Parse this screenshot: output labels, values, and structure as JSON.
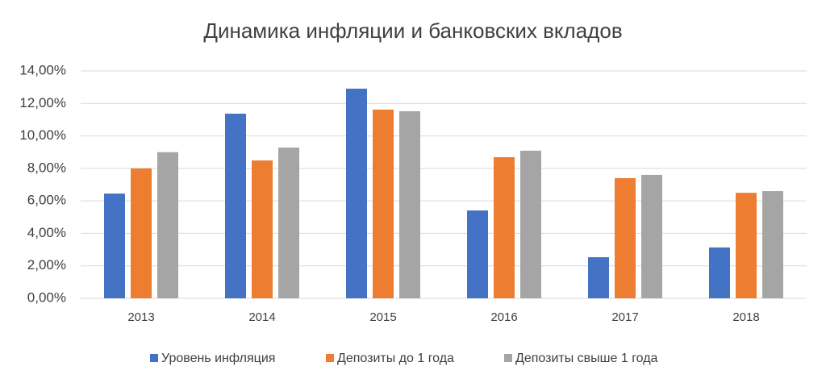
{
  "chart_data": {
    "type": "bar",
    "title": "Динамика инфляции и банковских вкладов",
    "categories": [
      "2013",
      "2014",
      "2015",
      "2016",
      "2017",
      "2018"
    ],
    "series": [
      {
        "name": "Уровень инфляция",
        "color": "#4472c4",
        "values": [
          6.45,
          11.37,
          12.91,
          5.41,
          2.53,
          3.13
        ]
      },
      {
        "name": "Депозиты до 1 года",
        "color": "#ed7d31",
        "values": [
          8.0,
          8.49,
          11.62,
          8.69,
          7.4,
          6.5
        ]
      },
      {
        "name": "Депозиты свыше 1 года",
        "color": "#a5a5a5",
        "values": [
          9.0,
          9.28,
          11.52,
          9.09,
          7.6,
          6.6
        ]
      }
    ],
    "ylim": [
      0,
      14
    ],
    "yticks": [
      {
        "value": 0,
        "label": "0,00%"
      },
      {
        "value": 2,
        "label": "2,00%"
      },
      {
        "value": 4,
        "label": "4,00%"
      },
      {
        "value": 6,
        "label": "6,00%"
      },
      {
        "value": 8,
        "label": "8,00%"
      },
      {
        "value": 10,
        "label": "10,00%"
      },
      {
        "value": 12,
        "label": "12,00%"
      },
      {
        "value": 14,
        "label": "14,00%"
      }
    ],
    "grid": true,
    "legend": "bottom"
  }
}
